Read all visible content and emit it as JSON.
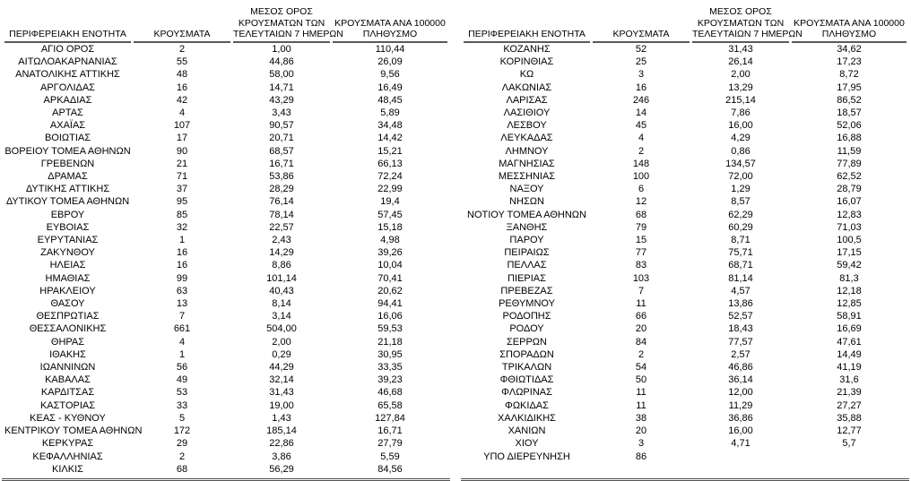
{
  "headers": {
    "region": "ΠΕΡΙΦΕΡΕΙΑΚΗ ΕΝΟΤΗΤΑ",
    "cases": "ΚΡΟΥΣΜΑΤΑ",
    "avg7": "ΜΕΣΟΣ ΟΡΟΣ\nΚΡΟΥΣΜΑΤΩΝ ΤΩΝ\nΤΕΛΕΥΤΑΙΩΝ 7 ΗΜΕΡΩΝ",
    "per100k": "ΚΡΟΥΣΜΑΤΑ ΑΝΑ 100000\nΠΛΗΘΥΣΜΟ"
  },
  "colors": {
    "text": "#000000",
    "bg": "#ffffff",
    "header_border": "#595959",
    "bottom_border": "#4f4f4f"
  },
  "tables": {
    "left": {
      "rows": [
        [
          "ΑΓΙΟ ΟΡΟΣ",
          "2",
          "1,00",
          "110,44"
        ],
        [
          "ΑΙΤΩΛΟΑΚΑΡΝΑΝΙΑΣ",
          "55",
          "44,86",
          "26,09"
        ],
        [
          "ΑΝΑΤΟΛΙΚΗΣ ΑΤΤΙΚΗΣ",
          "48",
          "58,00",
          "9,56"
        ],
        [
          "ΑΡΓΟΛΙΔΑΣ",
          "16",
          "14,71",
          "16,49"
        ],
        [
          "ΑΡΚΑΔΙΑΣ",
          "42",
          "43,29",
          "48,45"
        ],
        [
          "ΑΡΤΑΣ",
          "4",
          "3,43",
          "5,89"
        ],
        [
          "ΑΧΑΪΑΣ",
          "107",
          "90,57",
          "34,48"
        ],
        [
          "ΒΟΙΩΤΙΑΣ",
          "17",
          "20,71",
          "14,42"
        ],
        [
          "ΒΟΡΕΙΟΥ ΤΟΜΕΑ ΑΘΗΝΩΝ",
          "90",
          "68,57",
          "15,21"
        ],
        [
          "ΓΡΕΒΕΝΩΝ",
          "21",
          "16,71",
          "66,13"
        ],
        [
          "ΔΡΑΜΑΣ",
          "71",
          "53,86",
          "72,24"
        ],
        [
          "ΔΥΤΙΚΗΣ ΑΤΤΙΚΗΣ",
          "37",
          "28,29",
          "22,99"
        ],
        [
          "ΔΥΤΙΚΟΥ ΤΟΜΕΑ ΑΘΗΝΩΝ",
          "95",
          "76,14",
          "19,4"
        ],
        [
          "ΕΒΡΟΥ",
          "85",
          "78,14",
          "57,45"
        ],
        [
          "ΕΥΒΟΙΑΣ",
          "32",
          "22,57",
          "15,18"
        ],
        [
          "ΕΥΡΥΤΑΝΙΑΣ",
          "1",
          "2,43",
          "4,98"
        ],
        [
          "ΖΑΚΥΝΘΟΥ",
          "16",
          "14,29",
          "39,26"
        ],
        [
          "ΗΛΕΙΑΣ",
          "16",
          "8,86",
          "10,04"
        ],
        [
          "ΗΜΑΘΙΑΣ",
          "99",
          "101,14",
          "70,41"
        ],
        [
          "ΗΡΑΚΛΕΙΟΥ",
          "63",
          "40,43",
          "20,62"
        ],
        [
          "ΘΑΣΟΥ",
          "13",
          "8,14",
          "94,41"
        ],
        [
          "ΘΕΣΠΡΩΤΙΑΣ",
          "7",
          "3,14",
          "16,06"
        ],
        [
          "ΘΕΣΣΑΛΟΝΙΚΗΣ",
          "661",
          "504,00",
          "59,53"
        ],
        [
          "ΘΗΡΑΣ",
          "4",
          "2,00",
          "21,18"
        ],
        [
          "ΙΘΑΚΗΣ",
          "1",
          "0,29",
          "30,95"
        ],
        [
          "ΙΩΑΝΝΙΝΩΝ",
          "56",
          "44,29",
          "33,35"
        ],
        [
          "ΚΑΒΑΛΑΣ",
          "49",
          "32,14",
          "39,23"
        ],
        [
          "ΚΑΡΔΙΤΣΑΣ",
          "53",
          "31,43",
          "46,68"
        ],
        [
          "ΚΑΣΤΟΡΙΑΣ",
          "33",
          "19,00",
          "65,58"
        ],
        [
          "ΚΕΑΣ - ΚΥΘΝΟΥ",
          "5",
          "1,43",
          "127,84"
        ],
        [
          "ΚΕΝΤΡΙΚΟΥ ΤΟΜΕΑ ΑΘΗΝΩΝ",
          "172",
          "185,14",
          "16,71"
        ],
        [
          "ΚΕΡΚΥΡΑΣ",
          "29",
          "22,86",
          "27,79"
        ],
        [
          "ΚΕΦΑΛΛΗΝΙΑΣ",
          "2",
          "3,86",
          "5,59"
        ],
        [
          "ΚΙΛΚΙΣ",
          "68",
          "56,29",
          "84,56"
        ]
      ]
    },
    "right": {
      "rows": [
        [
          "ΚΟΖΑΝΗΣ",
          "52",
          "31,43",
          "34,62"
        ],
        [
          "ΚΟΡΙΝΘΙΑΣ",
          "25",
          "26,14",
          "17,23"
        ],
        [
          "ΚΩ",
          "3",
          "2,00",
          "8,72"
        ],
        [
          "ΛΑΚΩΝΙΑΣ",
          "16",
          "13,29",
          "17,95"
        ],
        [
          "ΛΑΡΙΣΑΣ",
          "246",
          "215,14",
          "86,52"
        ],
        [
          "ΛΑΣΙΘΙΟΥ",
          "14",
          "7,86",
          "18,57"
        ],
        [
          "ΛΕΣΒΟΥ",
          "45",
          "16,00",
          "52,06"
        ],
        [
          "ΛΕΥΚΑΔΑΣ",
          "4",
          "4,29",
          "16,88"
        ],
        [
          "ΛΗΜΝΟΥ",
          "2",
          "0,86",
          "11,59"
        ],
        [
          "ΜΑΓΝΗΣΙΑΣ",
          "148",
          "134,57",
          "77,89"
        ],
        [
          "ΜΕΣΣΗΝΙΑΣ",
          "100",
          "72,00",
          "62,52"
        ],
        [
          "ΝΑΞΟΥ",
          "6",
          "1,29",
          "28,79"
        ],
        [
          "ΝΗΣΩΝ",
          "12",
          "8,57",
          "16,07"
        ],
        [
          "ΝΟΤΙΟΥ ΤΟΜΕΑ ΑΘΗΝΩΝ",
          "68",
          "62,29",
          "12,83"
        ],
        [
          "ΞΑΝΘΗΣ",
          "79",
          "60,29",
          "71,03"
        ],
        [
          "ΠΑΡΟΥ",
          "15",
          "8,71",
          "100,5"
        ],
        [
          "ΠΕΙΡΑΙΩΣ",
          "77",
          "75,71",
          "17,15"
        ],
        [
          "ΠΕΛΛΑΣ",
          "83",
          "68,71",
          "59,42"
        ],
        [
          "ΠΙΕΡΙΑΣ",
          "103",
          "81,14",
          "81,3"
        ],
        [
          "ΠΡΕΒΕΖΑΣ",
          "7",
          "4,57",
          "12,18"
        ],
        [
          "ΡΕΘΥΜΝΟΥ",
          "11",
          "13,86",
          "12,85"
        ],
        [
          "ΡΟΔΟΠΗΣ",
          "66",
          "52,57",
          "58,91"
        ],
        [
          "ΡΟΔΟΥ",
          "20",
          "18,43",
          "16,69"
        ],
        [
          "ΣΕΡΡΩΝ",
          "84",
          "77,57",
          "47,61"
        ],
        [
          "ΣΠΟΡΑΔΩΝ",
          "2",
          "2,57",
          "14,49"
        ],
        [
          "ΤΡΙΚΑΛΩΝ",
          "54",
          "46,86",
          "41,19"
        ],
        [
          "ΦΘΙΩΤΙΔΑΣ",
          "50",
          "36,14",
          "31,6"
        ],
        [
          "ΦΛΩΡΙΝΑΣ",
          "11",
          "12,00",
          "21,39"
        ],
        [
          "ΦΩΚΙΔΑΣ",
          "11",
          "11,29",
          "27,27"
        ],
        [
          "ΧΑΛΚΙΔΙΚΗΣ",
          "38",
          "36,86",
          "35,88"
        ],
        [
          "ΧΑΝΙΩΝ",
          "20",
          "16,00",
          "12,77"
        ],
        [
          "ΧΙΟΥ",
          "3",
          "4,71",
          "5,7"
        ],
        [
          "ΥΠΟ ΔΙΕΡΕΥΝΗΣΗ",
          "86",
          "",
          ""
        ]
      ]
    }
  }
}
